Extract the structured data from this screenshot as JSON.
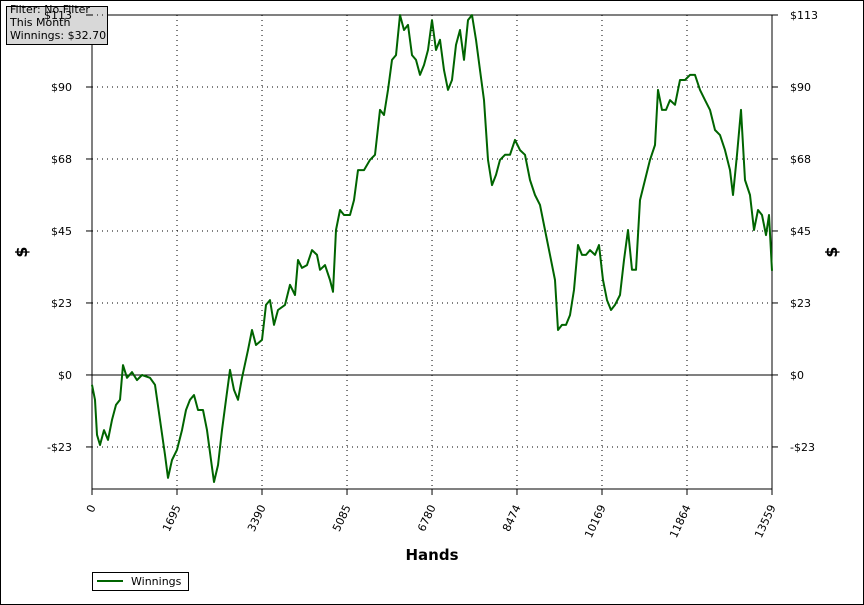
{
  "chart_data": {
    "type": "line",
    "annotations": [
      "Filter: No Filter",
      "This Month",
      "Winnings: $32.70"
    ],
    "xlabel": "Hands",
    "ylabel": "$",
    "y2label": "$",
    "x": [
      0,
      60,
      100,
      160,
      239,
      319,
      399,
      479,
      558,
      618,
      698,
      798,
      897,
      997,
      1157,
      1256,
      1356,
      1456,
      1515,
      1595,
      1695,
      1795,
      1874,
      1954,
      2034,
      2114,
      2213,
      2293,
      2373,
      2433,
      2512,
      2592,
      2672,
      2752,
      2831,
      2911,
      2991,
      3111,
      3190,
      3270,
      3390,
      3470,
      3549,
      3629,
      3709,
      3848,
      3948,
      4048,
      4108,
      4187,
      4287,
      4387,
      4487,
      4546,
      4646,
      4746,
      4806,
      4865,
      4945,
      5025,
      5145,
      5224,
      5304,
      5424,
      5543,
      5643,
      5743,
      5822,
      5902,
      5982,
      6062,
      6142,
      6221,
      6301,
      6381,
      6461,
      6540,
      6620,
      6700,
      6780,
      6859,
      6939,
      7019,
      7099,
      7178,
      7258,
      7338,
      7418,
      7497,
      7577,
      7657,
      7737,
      7816,
      7896,
      7976,
      8056,
      8136,
      8235,
      8335,
      8435,
      8534,
      8634,
      8734,
      8833,
      8933,
      9033,
      9133,
      9232,
      9292,
      9372,
      9452,
      9531,
      9611,
      9691,
      9771,
      9850,
      9930,
      10030,
      10110,
      10189,
      10269,
      10349,
      10429,
      10528,
      10608,
      10688,
      10768,
      10847,
      10927,
      11027,
      11127,
      11226,
      11286,
      11366,
      11446,
      11525,
      11625,
      11725,
      11824,
      11924,
      12024,
      12124,
      12223,
      12323,
      12423,
      12522,
      12622,
      12722,
      12782,
      12861,
      12941,
      13021,
      13121,
      13200,
      13280,
      13360,
      13440,
      13500,
      13559
    ],
    "series": [
      {
        "name": "Winnings",
        "color": "#006400",
        "values": [
          -3.1,
          -7.8,
          -18.8,
          -22.0,
          -17.3,
          -20.4,
          -14.1,
          -9.4,
          -7.8,
          3.1,
          -0.9,
          0.9,
          -1.6,
          0,
          -0.9,
          -3.1,
          -14.1,
          -25.1,
          -32.3,
          -26.7,
          -23.5,
          -17.3,
          -11.0,
          -7.8,
          -6.3,
          -11.0,
          -11.0,
          -17.3,
          -26.7,
          -33.6,
          -28.3,
          -17.3,
          -7.8,
          1.6,
          -4.7,
          -7.8,
          -0.9,
          7.8,
          14.1,
          9.4,
          11.0,
          22.0,
          23.5,
          15.7,
          20.4,
          22.0,
          28.3,
          25.1,
          36.1,
          33.6,
          34.5,
          39.2,
          37.7,
          33.0,
          34.5,
          29.8,
          26.1,
          45.5,
          51.8,
          50.2,
          50.2,
          54.9,
          64.3,
          64.3,
          67.5,
          69.1,
          83.2,
          81.6,
          89.5,
          98.9,
          100.4,
          113.0,
          108.3,
          109.9,
          100.4,
          98.9,
          94.2,
          97.3,
          102.0,
          111.4,
          102.0,
          105.2,
          95.7,
          89.5,
          92.6,
          103.6,
          108.3,
          98.9,
          111.4,
          113.0,
          105.2,
          95.7,
          86.3,
          67.5,
          59.6,
          62.8,
          67.5,
          69.1,
          69.1,
          73.8,
          70.6,
          69.1,
          61.2,
          56.5,
          53.4,
          45.5,
          37.7,
          29.8,
          14.1,
          15.7,
          15.7,
          18.8,
          26.7,
          40.8,
          37.7,
          37.7,
          39.2,
          37.7,
          40.8,
          29.8,
          23.5,
          20.4,
          22.0,
          25.1,
          36.1,
          45.5,
          33.0,
          33.0,
          54.9,
          61.2,
          67.5,
          72.2,
          89.5,
          83.2,
          83.2,
          86.3,
          84.8,
          92.6,
          92.6,
          94.2,
          94.2,
          89.5,
          86.3,
          83.2,
          76.9,
          75.3,
          70.6,
          64.3,
          56.5,
          69.1,
          83.2,
          61.2,
          56.5,
          45.5,
          51.8,
          50.2,
          43.9,
          50.2,
          32.7
        ]
      }
    ],
    "xlim": [
      0,
      13559
    ],
    "xticks": [
      0,
      1695,
      3390,
      5085,
      6780,
      8474,
      10169,
      11864,
      13559
    ],
    "ylim": [
      -35.8,
      113
    ],
    "yticks": [
      {
        "value": -22.6,
        "label": "-$23"
      },
      {
        "value": 0,
        "label": "$0"
      },
      {
        "value": 22.6,
        "label": "$23"
      },
      {
        "value": 45.2,
        "label": "$45"
      },
      {
        "value": 67.8,
        "label": "$68"
      },
      {
        "value": 90.4,
        "label": "$90"
      },
      {
        "value": 113,
        "label": "$113"
      }
    ],
    "y2lim": [
      -35.8,
      113
    ],
    "y2ticks": [
      {
        "value": -22.6,
        "label": "-$23"
      },
      {
        "value": 0,
        "label": "$0"
      },
      {
        "value": 22.6,
        "label": "$23"
      },
      {
        "value": 45.2,
        "label": "$45"
      },
      {
        "value": 67.8,
        "label": "$68"
      },
      {
        "value": 90.4,
        "label": "$90"
      },
      {
        "value": 113,
        "label": "$113"
      }
    ],
    "grid": true,
    "legend": "bottom-left"
  }
}
